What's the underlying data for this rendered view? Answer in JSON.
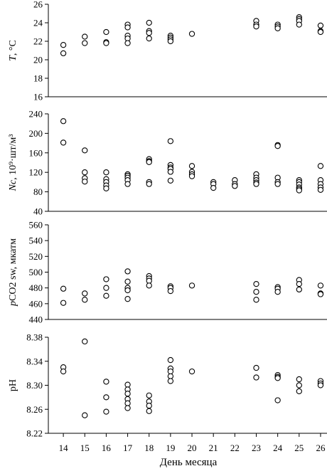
{
  "chart_data": [
    {
      "type": "scatter",
      "ylabel": "T, °C",
      "ylim": [
        16,
        26
      ],
      "yticks": [
        "16",
        "18",
        "20",
        "22",
        "24",
        "26"
      ],
      "yticks_num": [
        16,
        18,
        20,
        22,
        24,
        26
      ],
      "points": [
        [
          14,
          21.6
        ],
        [
          14,
          20.7
        ],
        [
          15,
          22.5
        ],
        [
          15,
          21.8
        ],
        [
          16,
          23.0
        ],
        [
          16,
          21.9
        ],
        [
          16,
          21.8
        ],
        [
          17,
          23.8
        ],
        [
          17,
          23.5
        ],
        [
          17,
          22.6
        ],
        [
          17,
          22.3
        ],
        [
          17,
          21.8
        ],
        [
          18,
          24.0
        ],
        [
          18,
          23.1
        ],
        [
          18,
          22.9
        ],
        [
          18,
          22.3
        ],
        [
          19,
          22.6
        ],
        [
          19,
          22.4
        ],
        [
          19,
          22.2
        ],
        [
          19,
          22.0
        ],
        [
          20,
          22.8
        ],
        [
          23,
          24.2
        ],
        [
          23,
          23.8
        ],
        [
          23,
          23.6
        ],
        [
          24,
          23.8
        ],
        [
          24,
          23.6
        ],
        [
          24,
          23.4
        ],
        [
          25,
          24.6
        ],
        [
          25,
          24.4
        ],
        [
          25,
          24.2
        ],
        [
          25,
          23.8
        ],
        [
          26,
          23.7
        ],
        [
          26,
          23.1
        ],
        [
          26,
          23.0
        ]
      ]
    },
    {
      "type": "scatter",
      "ylabel_italic": "Nc",
      "ylabel_rest": ", 10⁹·шт/м³",
      "ylim": [
        40,
        240
      ],
      "yticks": [
        "40",
        "80",
        "120",
        "160",
        "200",
        "240"
      ],
      "yticks_num": [
        40,
        80,
        120,
        160,
        200,
        240
      ],
      "points": [
        [
          14,
          225
        ],
        [
          14,
          181
        ],
        [
          15,
          165
        ],
        [
          15,
          120
        ],
        [
          15,
          108
        ],
        [
          15,
          101
        ],
        [
          16,
          120
        ],
        [
          16,
          106
        ],
        [
          16,
          100
        ],
        [
          16,
          93
        ],
        [
          16,
          87
        ],
        [
          17,
          116
        ],
        [
          17,
          113
        ],
        [
          17,
          109
        ],
        [
          17,
          104
        ],
        [
          17,
          96
        ],
        [
          18,
          147
        ],
        [
          18,
          143
        ],
        [
          18,
          141
        ],
        [
          18,
          100
        ],
        [
          18,
          96
        ],
        [
          19,
          184
        ],
        [
          19,
          135
        ],
        [
          19,
          130
        ],
        [
          19,
          127
        ],
        [
          19,
          121
        ],
        [
          19,
          103
        ],
        [
          20,
          133
        ],
        [
          20,
          121
        ],
        [
          20,
          116
        ],
        [
          20,
          112
        ],
        [
          21,
          100
        ],
        [
          21,
          96
        ],
        [
          21,
          88
        ],
        [
          22,
          104
        ],
        [
          22,
          96
        ],
        [
          22,
          92
        ],
        [
          23,
          116
        ],
        [
          23,
          109
        ],
        [
          23,
          104
        ],
        [
          23,
          99
        ],
        [
          23,
          96
        ],
        [
          24,
          176
        ],
        [
          24,
          174
        ],
        [
          24,
          109
        ],
        [
          24,
          100
        ],
        [
          24,
          96
        ],
        [
          25,
          104
        ],
        [
          25,
          100
        ],
        [
          25,
          95
        ],
        [
          25,
          89
        ],
        [
          25,
          86
        ],
        [
          25,
          83
        ],
        [
          26,
          133
        ],
        [
          26,
          104
        ],
        [
          26,
          96
        ],
        [
          26,
          89
        ],
        [
          26,
          84
        ]
      ]
    },
    {
      "type": "scatter",
      "ylabel_italic": "p",
      "ylabel_rest": "CO2 sw, мкатм",
      "ylim": [
        440,
        560
      ],
      "yticks": [
        "440",
        "460",
        "480",
        "500",
        "520",
        "540",
        "560"
      ],
      "yticks_num": [
        440,
        460,
        480,
        500,
        520,
        540,
        560
      ],
      "points": [
        [
          14,
          479
        ],
        [
          14,
          461
        ],
        [
          15,
          473
        ],
        [
          15,
          465
        ],
        [
          16,
          491
        ],
        [
          16,
          480
        ],
        [
          16,
          470
        ],
        [
          17,
          501
        ],
        [
          17,
          488
        ],
        [
          17,
          480
        ],
        [
          17,
          477
        ],
        [
          17,
          466
        ],
        [
          18,
          495
        ],
        [
          18,
          492
        ],
        [
          18,
          489
        ],
        [
          18,
          483
        ],
        [
          19,
          482
        ],
        [
          19,
          480
        ],
        [
          19,
          476
        ],
        [
          20,
          483
        ],
        [
          23,
          485
        ],
        [
          23,
          475
        ],
        [
          23,
          465
        ],
        [
          24,
          481
        ],
        [
          24,
          479
        ],
        [
          24,
          475
        ],
        [
          25,
          490
        ],
        [
          25,
          485
        ],
        [
          25,
          478
        ],
        [
          26,
          483
        ],
        [
          26,
          473
        ],
        [
          26,
          472
        ]
      ]
    },
    {
      "type": "scatter",
      "ylabel": "pH",
      "ylim": [
        8.22,
        8.38
      ],
      "yticks": [
        "8.22",
        "8.26",
        "8.30",
        "8.34",
        "8.38"
      ],
      "yticks_num": [
        8.22,
        8.26,
        8.3,
        8.34,
        8.38
      ],
      "points": [
        [
          14,
          8.33
        ],
        [
          14,
          8.323
        ],
        [
          15,
          8.373
        ],
        [
          15,
          8.25
        ],
        [
          16,
          8.306
        ],
        [
          16,
          8.28
        ],
        [
          16,
          8.256
        ],
        [
          17,
          8.301
        ],
        [
          17,
          8.293
        ],
        [
          17,
          8.286
        ],
        [
          17,
          8.277
        ],
        [
          17,
          8.27
        ],
        [
          17,
          8.262
        ],
        [
          18,
          8.283
        ],
        [
          18,
          8.273
        ],
        [
          18,
          8.266
        ],
        [
          18,
          8.257
        ],
        [
          19,
          8.342
        ],
        [
          19,
          8.328
        ],
        [
          19,
          8.323
        ],
        [
          19,
          8.315
        ],
        [
          19,
          8.307
        ],
        [
          20,
          8.323
        ],
        [
          23,
          8.329
        ],
        [
          23,
          8.313
        ],
        [
          24,
          8.317
        ],
        [
          24,
          8.314
        ],
        [
          24,
          8.312
        ],
        [
          24,
          8.275
        ],
        [
          25,
          8.31
        ],
        [
          25,
          8.3
        ],
        [
          25,
          8.29
        ],
        [
          26,
          8.307
        ],
        [
          26,
          8.303
        ],
        [
          26,
          8.3
        ]
      ]
    }
  ],
  "x_axis": {
    "label": "День месяца",
    "ticks": [
      "14",
      "15",
      "16",
      "17",
      "18",
      "19",
      "20",
      "21",
      "22",
      "23",
      "24",
      "25",
      "26"
    ],
    "range": [
      13.3,
      26.3
    ]
  }
}
